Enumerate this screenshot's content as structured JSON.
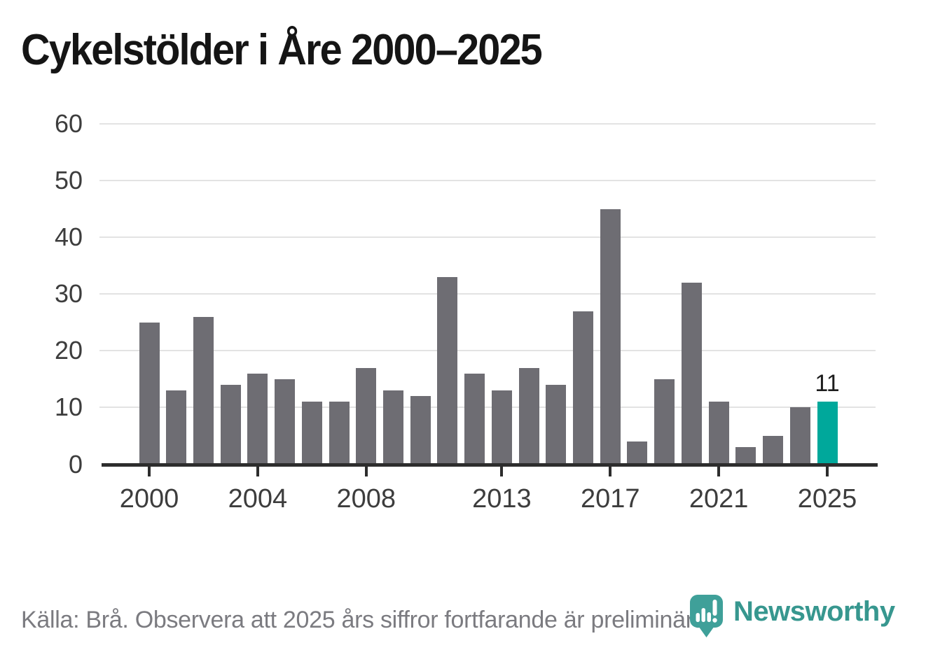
{
  "title": "Cykelstölder i Åre 2000–2025",
  "footer": {
    "source_note": "Källa: Brå. Observera att 2025 års siffror fortfarande är preliminära.",
    "brand": "Newsworthy"
  },
  "colors": {
    "bar": "#6e6d73",
    "highlight": "#00a89b",
    "grid": "#e3e3e3",
    "axis": "#2d2d2d",
    "axis_label": "#3d3d3d",
    "title": "#151515",
    "footer_text": "#7b7b80",
    "annotation": "#1d1d1d",
    "brand_pin": "#3fa099",
    "brand_text": "#37978f"
  },
  "chart_data": {
    "type": "bar",
    "title": "Cykelstölder i Åre 2000–2025",
    "categories": [
      2000,
      2001,
      2002,
      2003,
      2004,
      2005,
      2006,
      2007,
      2008,
      2009,
      2010,
      2011,
      2012,
      2013,
      2014,
      2015,
      2016,
      2017,
      2018,
      2019,
      2020,
      2021,
      2022,
      2023,
      2024,
      2025
    ],
    "values": [
      25,
      13,
      26,
      14,
      16,
      15,
      11,
      11,
      17,
      13,
      12,
      33,
      16,
      13,
      17,
      14,
      27,
      45,
      4,
      15,
      32,
      11,
      3,
      5,
      10,
      11
    ],
    "highlight_index": 25,
    "annotation": {
      "index": 25,
      "text": "11"
    },
    "x_tick_years": [
      2000,
      2004,
      2008,
      2013,
      2017,
      2021,
      2025
    ],
    "x_tick_labels": [
      "2000",
      "2004",
      "2008",
      "2013",
      "2017",
      "2021",
      "2025"
    ],
    "y_ticks": [
      0,
      10,
      20,
      30,
      40,
      50,
      60
    ],
    "ylim": [
      0,
      60
    ],
    "xlabel": "",
    "ylabel": "",
    "grid": true,
    "legend": false
  }
}
